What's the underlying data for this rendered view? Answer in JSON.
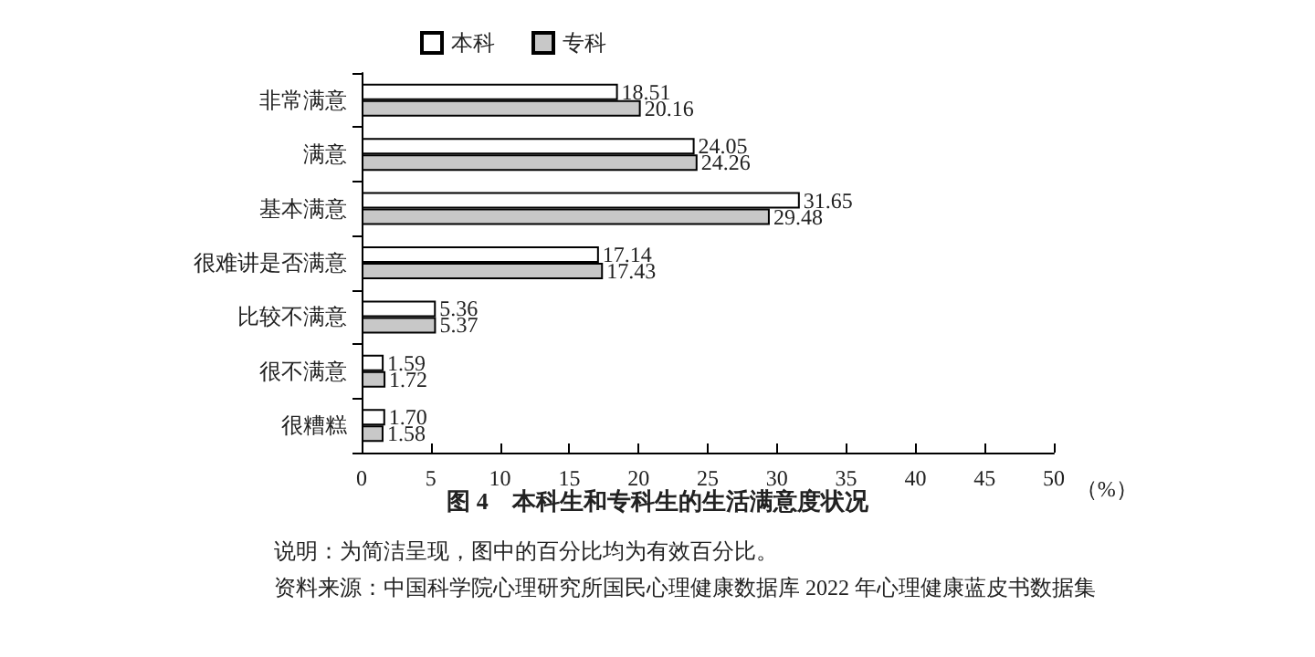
{
  "chart_data": {
    "type": "bar",
    "orientation": "horizontal",
    "title": "图 4　本科生和专科生的生活满意度状况",
    "xlabel": "（%）",
    "annotations": [
      "说明：为简洁呈现，图中的百分比均为有效百分比。",
      "资料来源：中国科学院心理研究所国民心理健康数据库 2022 年心理健康蓝皮书数据集"
    ],
    "categories": [
      "非常满意",
      "满意",
      "基本满意",
      "很难讲是否满意",
      "比较不满意",
      "很不满意",
      "很糟糕"
    ],
    "series": [
      {
        "name": "本科",
        "color": "#ffffff",
        "values": [
          18.51,
          24.05,
          31.65,
          17.14,
          5.36,
          1.59,
          1.7
        ],
        "value_labels": [
          "18.51",
          "24.05",
          "31.65",
          "17.14",
          "5.36",
          "1.59",
          "1.70"
        ]
      },
      {
        "name": "专科",
        "color": "#c8c8c8",
        "values": [
          20.16,
          24.26,
          29.48,
          17.43,
          5.37,
          1.72,
          1.58
        ],
        "value_labels": [
          "20.16",
          "24.26",
          "29.48",
          "17.43",
          "5.37",
          "1.72",
          "1.58"
        ]
      }
    ],
    "xlim": [
      0,
      50
    ],
    "xticks": [
      0,
      5,
      10,
      15,
      20,
      25,
      30,
      35,
      40,
      45,
      50
    ],
    "grid": false,
    "legend": "top left"
  }
}
